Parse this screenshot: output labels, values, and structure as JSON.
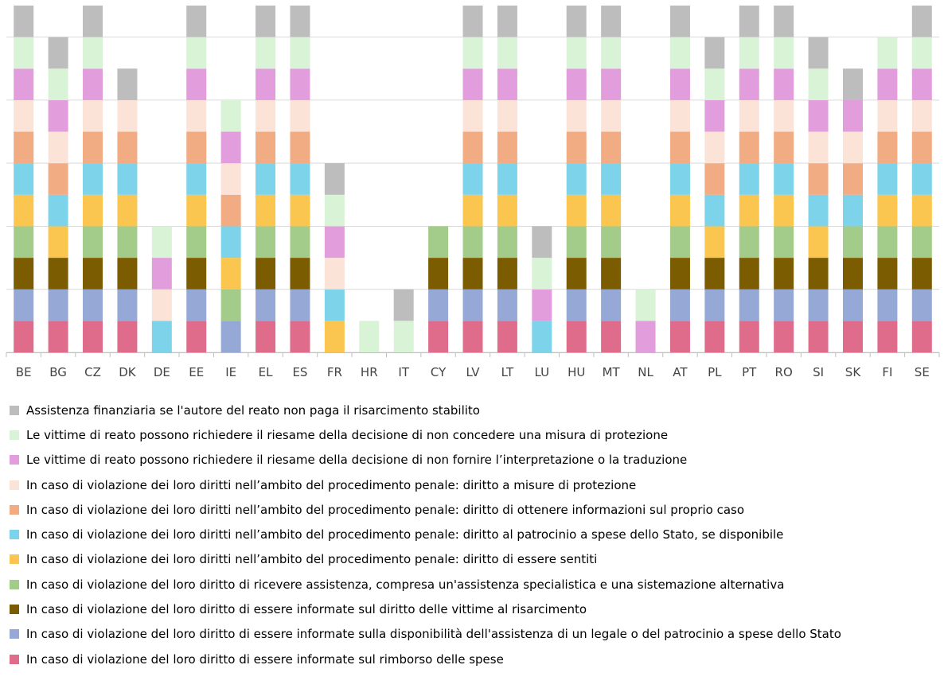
{
  "chart_data": {
    "type": "bar",
    "stacked": true,
    "grid": "horizontal",
    "ylim": [
      0,
      11
    ],
    "legend_position": "bottom",
    "categories": [
      "BE",
      "BG",
      "CZ",
      "DK",
      "DE",
      "EE",
      "IE",
      "EL",
      "ES",
      "FR",
      "HR",
      "IT",
      "CY",
      "LV",
      "LT",
      "LU",
      "HU",
      "MT",
      "NL",
      "AT",
      "PL",
      "PT",
      "RO",
      "SI",
      "SK",
      "FI",
      "SE"
    ],
    "series": [
      {
        "name": "In caso di violazione del loro diritto di essere informate sul rimborso delle spese",
        "color": "#e06c8c",
        "values": [
          1,
          1,
          1,
          1,
          0,
          1,
          0,
          1,
          1,
          0,
          0,
          0,
          1,
          1,
          1,
          0,
          1,
          1,
          0,
          1,
          1,
          1,
          1,
          1,
          1,
          1,
          1
        ]
      },
      {
        "name": "In caso di violazione del loro diritto di essere informate sulla disponibilità dell'assistenza di un legale o del patrocinio a spese dello Stato",
        "color": "#95a8d6",
        "values": [
          1,
          1,
          1,
          1,
          0,
          1,
          1,
          1,
          1,
          0,
          0,
          0,
          1,
          1,
          1,
          0,
          1,
          1,
          0,
          1,
          1,
          1,
          1,
          1,
          1,
          1,
          1
        ]
      },
      {
        "name": "In caso di violazione del loro diritto di essere informate sul diritto delle vittime al risarcimento",
        "color": "#7b5c00",
        "values": [
          1,
          1,
          1,
          1,
          0,
          1,
          0,
          1,
          1,
          0,
          0,
          0,
          1,
          1,
          1,
          0,
          1,
          1,
          0,
          1,
          1,
          1,
          1,
          1,
          1,
          1,
          1
        ]
      },
      {
        "name": "In caso di violazione del loro diritto di ricevere assistenza, compresa un'assistenza specialistica e una sistemazione alternativa",
        "color": "#a3cc8a",
        "values": [
          1,
          0,
          1,
          1,
          0,
          1,
          1,
          1,
          1,
          0,
          0,
          0,
          1,
          1,
          1,
          0,
          1,
          1,
          0,
          1,
          0,
          1,
          1,
          0,
          1,
          1,
          1
        ]
      },
      {
        "name": "In caso di violazione dei loro diritti nell’ambito del procedimento penale: diritto di essere sentiti",
        "color": "#fbc64f",
        "values": [
          1,
          1,
          1,
          1,
          0,
          1,
          1,
          1,
          1,
          1,
          0,
          0,
          0,
          1,
          1,
          0,
          1,
          1,
          0,
          1,
          1,
          1,
          1,
          1,
          0,
          1,
          1
        ]
      },
      {
        "name": "In caso di violazione dei loro diritti nell’ambito del procedimento penale: diritto al patrocinio a spese dello Stato, se disponibile",
        "color": "#7dd3ea",
        "values": [
          1,
          1,
          1,
          1,
          1,
          1,
          1,
          1,
          1,
          1,
          0,
          0,
          0,
          1,
          1,
          1,
          1,
          1,
          0,
          1,
          1,
          1,
          1,
          1,
          1,
          1,
          1
        ]
      },
      {
        "name": "In caso di violazione dei loro diritti nell’ambito del procedimento penale: diritto di ottenere informazioni sul proprio caso",
        "color": "#f2ac84",
        "values": [
          1,
          1,
          1,
          1,
          0,
          1,
          1,
          1,
          1,
          0,
          0,
          0,
          0,
          1,
          1,
          0,
          1,
          1,
          0,
          1,
          1,
          1,
          1,
          1,
          1,
          1,
          1
        ]
      },
      {
        "name": "In caso di violazione dei loro diritti nell’ambito del procedimento penale: diritto a misure di protezione",
        "color": "#fbe3d8",
        "values": [
          1,
          1,
          1,
          1,
          1,
          1,
          1,
          1,
          1,
          1,
          0,
          0,
          0,
          1,
          1,
          0,
          1,
          1,
          0,
          1,
          1,
          1,
          1,
          1,
          1,
          1,
          1
        ]
      },
      {
        "name": "Le vittime di reato possono richiedere il riesame della decisione di non fornire l’interpretazione o la traduzione",
        "color": "#e29edc",
        "values": [
          1,
          1,
          1,
          0,
          1,
          1,
          1,
          1,
          1,
          1,
          0,
          0,
          0,
          1,
          1,
          1,
          1,
          1,
          1,
          1,
          1,
          1,
          1,
          1,
          1,
          1,
          1
        ]
      },
      {
        "name": "Le vittime di reato possono richiedere il riesame della decisione di non concedere una misura di protezione",
        "color": "#d9f3d6",
        "values": [
          1,
          1,
          1,
          0,
          1,
          1,
          1,
          1,
          1,
          1,
          1,
          1,
          0,
          1,
          1,
          1,
          1,
          1,
          1,
          1,
          1,
          1,
          1,
          1,
          0,
          1,
          1
        ]
      },
      {
        "name": "Assistenza finanziaria se l'autore del reato non paga il risarcimento stabilito",
        "color": "#bdbdbd",
        "values": [
          1,
          1,
          1,
          1,
          0,
          1,
          0,
          1,
          1,
          1,
          0,
          1,
          0,
          1,
          1,
          1,
          1,
          1,
          0,
          1,
          1,
          1,
          1,
          1,
          1,
          0,
          1
        ]
      }
    ]
  }
}
